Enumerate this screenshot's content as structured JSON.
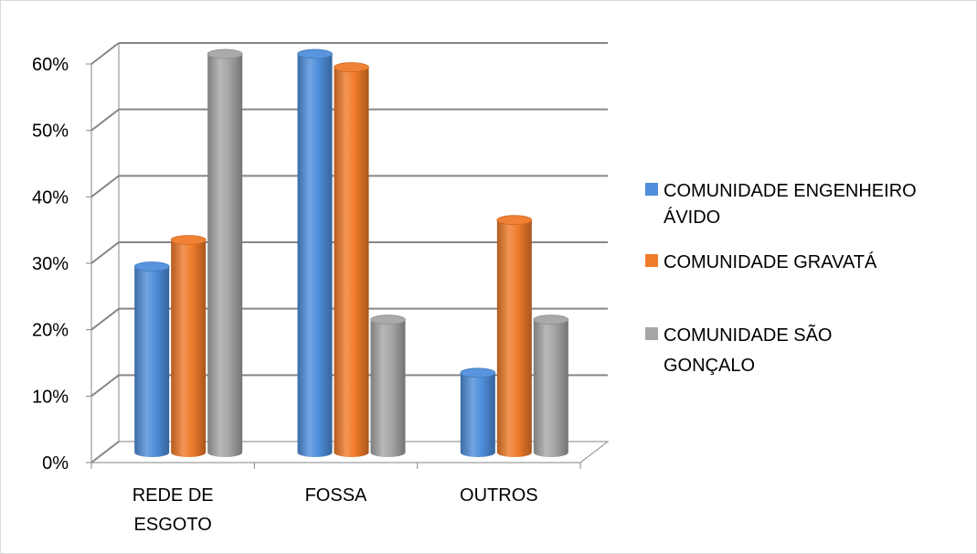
{
  "chart_data": {
    "type": "bar",
    "title": "",
    "xlabel": "",
    "ylabel": "",
    "ylim": [
      0,
      0.6
    ],
    "yticks": [
      "0%",
      "10%",
      "20%",
      "30%",
      "40%",
      "50%",
      "60%"
    ],
    "categories": [
      [
        "REDE DE",
        "ESGOTO"
      ],
      [
        "FOSSA"
      ],
      [
        "OUTROS"
      ]
    ],
    "series": [
      {
        "name": [
          "COMUNIDADE ENGENHEIRO",
          "ÁVIDO"
        ],
        "color": "#4f8fdc",
        "values": [
          0.28,
          0.6,
          0.12
        ]
      },
      {
        "name": [
          "COMUNIDADE GRAVATÁ"
        ],
        "color": "#f07b2a",
        "values": [
          0.32,
          0.58,
          0.35
        ]
      },
      {
        "name": [
          "COMUNIDADE SÃO",
          "GONÇALO"
        ],
        "color": "#a6a6a6",
        "values": [
          0.6,
          0.2,
          0.2
        ]
      }
    ],
    "grid": true,
    "legend_position": "right",
    "style": "3d-cylinder"
  }
}
